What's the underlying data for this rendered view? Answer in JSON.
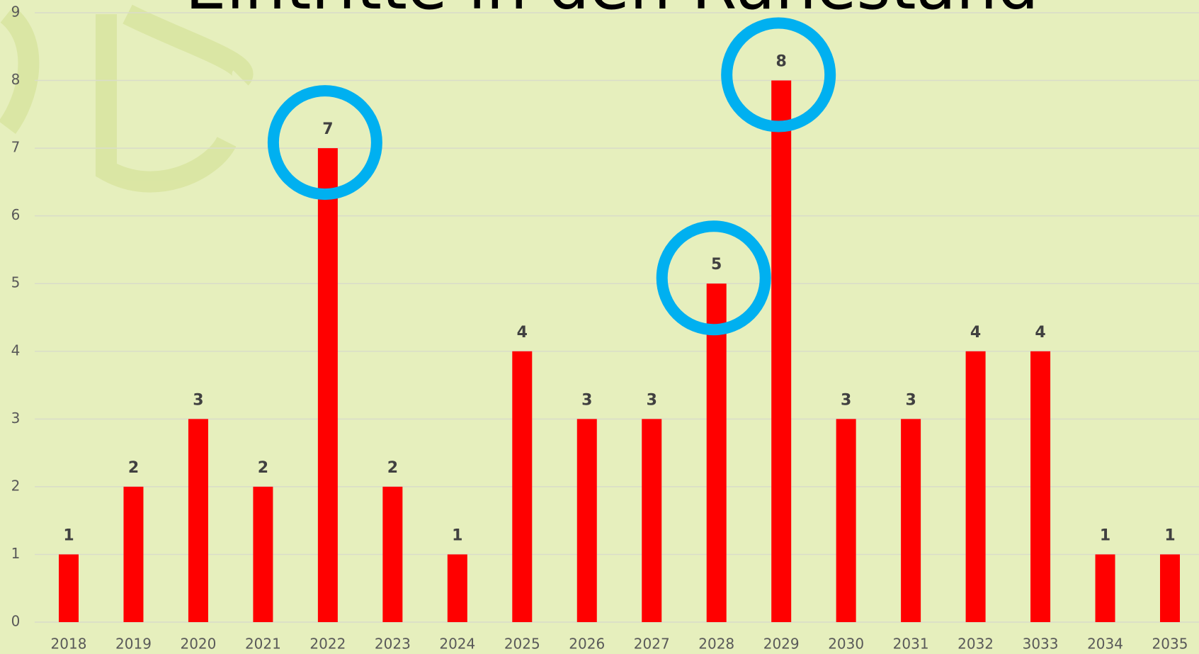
{
  "chart_data": {
    "type": "bar",
    "title": "Eintritte in den Ruhestand",
    "categories": [
      "2018",
      "2019",
      "2020",
      "2021",
      "2022",
      "2023",
      "2024",
      "2025",
      "2026",
      "2027",
      "2028",
      "2029",
      "2030",
      "2031",
      "2032",
      "3033",
      "2034",
      "2035"
    ],
    "values": [
      1,
      2,
      3,
      2,
      7,
      2,
      1,
      4,
      3,
      3,
      5,
      8,
      3,
      3,
      4,
      4,
      1,
      1
    ],
    "color": "#ff0000",
    "highlighted": [
      4,
      10,
      11
    ],
    "highlight_color": "#00b0f0",
    "ylim": [
      0,
      9
    ],
    "yticks": [
      0,
      1,
      2,
      3,
      4,
      5,
      6,
      7,
      8,
      9
    ],
    "grid": true
  }
}
